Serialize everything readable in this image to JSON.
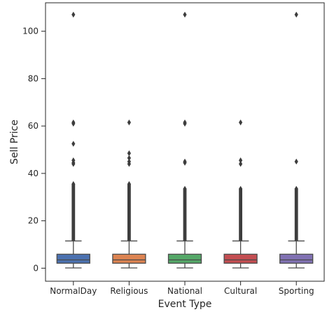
{
  "chart_data": {
    "type": "box",
    "title": "",
    "xlabel": "Event Type",
    "ylabel": "Sell Price",
    "categories": [
      "NormalDay",
      "Religious",
      "National",
      "Cultural",
      "Sporting"
    ],
    "colors": [
      "#4c72b0",
      "#dd8452",
      "#55a868",
      "#c44e52",
      "#8172b3"
    ],
    "ylim": [
      -5.5,
      112
    ],
    "yticks": [
      0,
      20,
      40,
      60,
      80,
      100
    ],
    "grid": false,
    "boxes": [
      {
        "name": "NormalDay",
        "whisker_low": 0.1,
        "q1": 2.1,
        "median": 3.5,
        "q3": 5.9,
        "whisker_high": 11.5,
        "outlier_range": [
          11.5,
          35.5
        ],
        "outliers": [
          44.0,
          44.5,
          45.5,
          52.5,
          61.0,
          61.5,
          107.0
        ]
      },
      {
        "name": "Religious",
        "whisker_low": 0.1,
        "q1": 2.1,
        "median": 3.5,
        "q3": 5.9,
        "whisker_high": 11.5,
        "outlier_range": [
          11.5,
          35.5
        ],
        "outliers": [
          44.0,
          45.0,
          46.5,
          48.5,
          61.5
        ]
      },
      {
        "name": "National",
        "whisker_low": 0.1,
        "q1": 2.1,
        "median": 3.5,
        "q3": 5.9,
        "whisker_high": 11.5,
        "outlier_range": [
          11.5,
          33.5
        ],
        "outliers": [
          44.5,
          45.0,
          61.0,
          61.5,
          107.0
        ]
      },
      {
        "name": "Cultural",
        "whisker_low": 0.1,
        "q1": 2.1,
        "median": 3.5,
        "q3": 5.9,
        "whisker_high": 11.5,
        "outlier_range": [
          11.5,
          33.5
        ],
        "outliers": [
          44.0,
          45.5,
          61.5
        ]
      },
      {
        "name": "Sporting",
        "whisker_low": 0.1,
        "q1": 2.1,
        "median": 3.5,
        "q3": 5.9,
        "whisker_high": 11.5,
        "outlier_range": [
          11.5,
          33.5
        ],
        "outliers": [
          45.0,
          107.0
        ]
      }
    ]
  }
}
